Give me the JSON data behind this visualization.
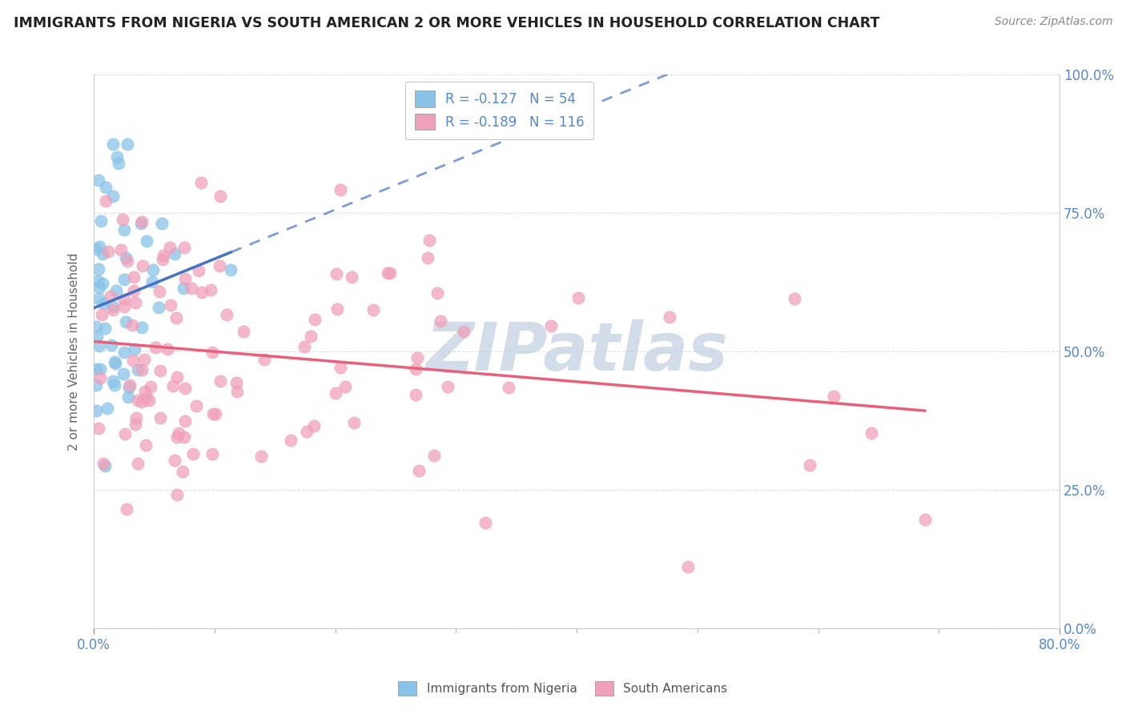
{
  "title": "IMMIGRANTS FROM NIGERIA VS SOUTH AMERICAN 2 OR MORE VEHICLES IN HOUSEHOLD CORRELATION CHART",
  "source": "Source: ZipAtlas.com",
  "legend_label_nigeria": "Immigrants from Nigeria",
  "legend_label_south": "South Americans",
  "color_nigeria": "#89c4e8",
  "color_south": "#f0a0b8",
  "color_trend_nigeria": "#4472c4",
  "color_trend_south": "#e8607a",
  "r_nigeria": -0.127,
  "n_nigeria": 54,
  "r_south": -0.189,
  "n_south": 116,
  "xmin": 0.0,
  "xmax": 0.8,
  "ymin": 0.0,
  "ymax": 1.0,
  "watermark": "ZIPatlas",
  "watermark_color": "#c8d4e4",
  "background_color": "#ffffff",
  "grid_color": "#e0e0e0",
  "axis_color": "#5588cc",
  "ylabel": "2 or more Vehicles in Household",
  "title_color": "#222222",
  "source_color": "#888888"
}
